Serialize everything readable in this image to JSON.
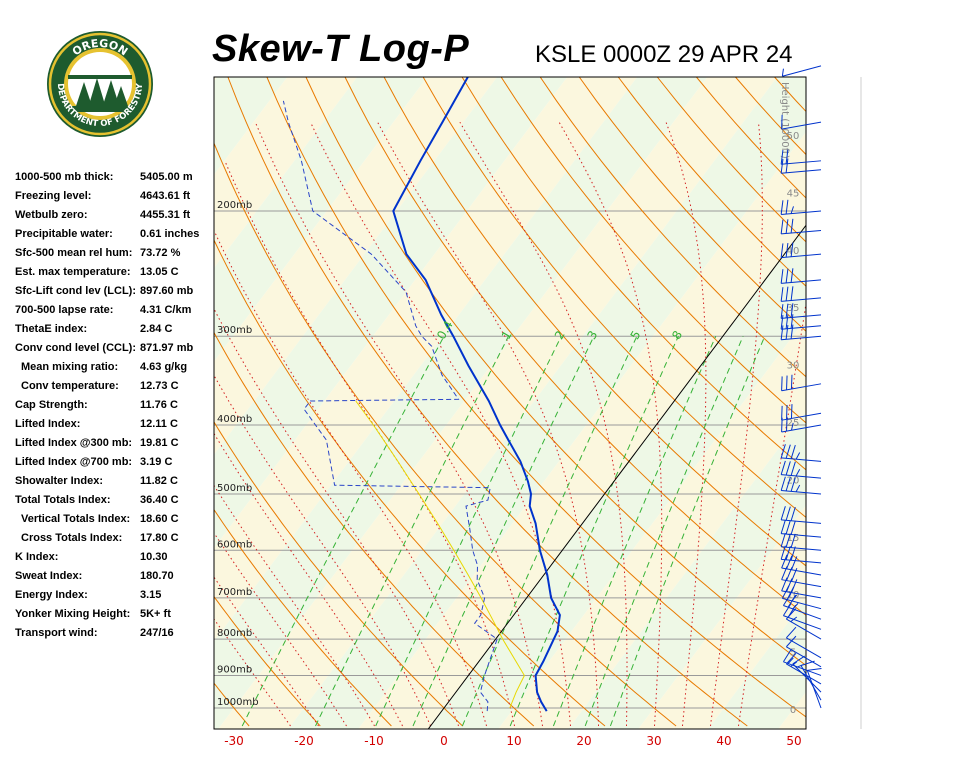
{
  "header": {
    "title": "Skew-T Log-P",
    "subtitle": "KSLE 0000Z 29 APR 24",
    "logo_text_top": "OREGON",
    "logo_text_bottom": "DEPARTMENT OF FORESTRY"
  },
  "indices": [
    {
      "label": "1000-500 mb thick:",
      "value": "5405.00 m",
      "indent": false
    },
    {
      "label": "Freezing level:",
      "value": "4643.61 ft",
      "indent": false
    },
    {
      "label": "Wetbulb zero:",
      "value": "4455.31 ft",
      "indent": false
    },
    {
      "label": "Precipitable water:",
      "value": "0.61 inches",
      "indent": false
    },
    {
      "label": "Sfc-500 mean rel hum:",
      "value": "73.72 %",
      "indent": false
    },
    {
      "label": "Est. max temperature:",
      "value": "13.05 C",
      "indent": false
    },
    {
      "label": "Sfc-Lift cond lev (LCL):",
      "value": "897.60 mb",
      "indent": false
    },
    {
      "label": "700-500 lapse rate:",
      "value": "4.31 C/km",
      "indent": false
    },
    {
      "label": "ThetaE index:",
      "value": "2.84 C",
      "indent": false
    },
    {
      "label": "Conv cond level (CCL):",
      "value": "871.97 mb",
      "indent": false
    },
    {
      "label": "Mean mixing ratio:",
      "value": "4.63 g/kg",
      "indent": true
    },
    {
      "label": "Conv temperature:",
      "value": "12.73 C",
      "indent": true
    },
    {
      "label": "Cap Strength:",
      "value": "11.76 C",
      "indent": false
    },
    {
      "label": "Lifted Index:",
      "value": "12.11 C",
      "indent": false
    },
    {
      "label": "Lifted Index @300 mb:",
      "value": "19.81 C",
      "indent": false
    },
    {
      "label": "Lifted Index @700 mb:",
      "value": "3.19 C",
      "indent": false
    },
    {
      "label": "Showalter Index:",
      "value": "11.82 C",
      "indent": false
    },
    {
      "label": "Total Totals Index:",
      "value": "36.40 C",
      "indent": false
    },
    {
      "label": "Vertical Totals Index:",
      "value": "18.60 C",
      "indent": true
    },
    {
      "label": "Cross Totals Index:",
      "value": "17.80 C",
      "indent": true
    },
    {
      "label": "K Index:",
      "value": "10.30",
      "indent": false
    },
    {
      "label": "Sweat Index:",
      "value": "180.70",
      "indent": false
    },
    {
      "label": "Energy Index:",
      "value": "3.15",
      "indent": false
    },
    {
      "label": "Yonker Mixing Height:",
      "value": "5K+ ft",
      "indent": false
    },
    {
      "label": "Transport wind:",
      "value": "247/16",
      "indent": false
    }
  ],
  "chart_data": {
    "type": "line",
    "title": "Skew-T Log-P",
    "subtitle": "KSLE 0000Z 29 APR 24",
    "xlabel": "",
    "ylabel": "",
    "xlim": [
      -33,
      51
    ],
    "ylim_mb": [
      1050,
      115
    ],
    "y_log": true,
    "skewed_temperature_axis": true,
    "x_ticks": [
      "-30",
      "-20",
      "-10",
      "0",
      "10",
      "20",
      "30",
      "40",
      "50"
    ],
    "pressure_labels": [
      "200mb",
      "300mb",
      "400mb",
      "500mb",
      "600mb",
      "700mb",
      "800mb",
      "900mb",
      "1000mb"
    ],
    "height_axis_title": "Height (1000ft)",
    "height_ticks": [
      "0",
      "5",
      "10",
      "15",
      "20",
      "25",
      "30",
      "35",
      "40",
      "45",
      "50"
    ],
    "mixing_ratio_labels": [
      "0.4",
      "1",
      "2",
      "3",
      "5",
      "8"
    ],
    "colors": {
      "temperature": "#0033cc",
      "dewpoint": "#2a45c8",
      "parcel": "#e8d800",
      "dry_adiabat": "#e87a00",
      "moist_adiabat": "#d32020",
      "mixing_ratio": "#36b236",
      "isobar": "#9a9a9a",
      "zero_isotherm": "#000000",
      "band_light": "#eef8e6",
      "band_dark": "#fbf7de",
      "axis_label": "#d20000"
    },
    "series": [
      {
        "points": [
          {
            "p": 1010,
            "t": 15.0
          },
          {
            "p": 980,
            "t": 13.2
          },
          {
            "p": 950,
            "t": 11.6
          },
          {
            "p": 900,
            "t": 9.6
          },
          {
            "p": 860,
            "t": 9.2
          },
          {
            "p": 800,
            "t": 8.3
          },
          {
            "p": 780,
            "t": 8.0
          },
          {
            "p": 740,
            "t": 6.6
          },
          {
            "p": 700,
            "t": 3.5
          },
          {
            "p": 650,
            "t": 0.5
          },
          {
            "p": 600,
            "t": -3.2
          },
          {
            "p": 550,
            "t": -6.7
          },
          {
            "p": 520,
            "t": -9.4
          },
          {
            "p": 500,
            "t": -10.5
          },
          {
            "p": 480,
            "t": -12.3
          },
          {
            "p": 450,
            "t": -15.5
          },
          {
            "p": 420,
            "t": -19.5
          },
          {
            "p": 400,
            "t": -22.3
          },
          {
            "p": 370,
            "t": -26.5
          },
          {
            "p": 330,
            "t": -33.2
          },
          {
            "p": 300,
            "t": -38.5
          },
          {
            "p": 280,
            "t": -42.5
          },
          {
            "p": 250,
            "t": -48.5
          },
          {
            "p": 230,
            "t": -54.0
          },
          {
            "p": 200,
            "t": -60.5
          },
          {
            "p": 170,
            "t": -62.0
          },
          {
            "p": 150,
            "t": -63.0
          },
          {
            "p": 125,
            "t": -64.5
          }
        ]
      },
      {
        "points": [
          {
            "p": 1010,
            "t": 6.5
          },
          {
            "p": 980,
            "t": 5.6
          },
          {
            "p": 950,
            "t": 3.5
          },
          {
            "p": 900,
            "t": 2.3
          },
          {
            "p": 860,
            "t": 1.5
          },
          {
            "p": 800,
            "t": 0.2
          },
          {
            "p": 760,
            "t": -4.7
          },
          {
            "p": 740,
            "t": -4.7
          },
          {
            "p": 700,
            "t": -6.0
          },
          {
            "p": 660,
            "t": -9.0
          },
          {
            "p": 630,
            "t": -10.5
          },
          {
            "p": 600,
            "t": -12.8
          },
          {
            "p": 560,
            "t": -15.5
          },
          {
            "p": 520,
            "t": -18.5
          },
          {
            "p": 510,
            "t": -16.0
          },
          {
            "p": 490,
            "t": -17.0
          },
          {
            "p": 486,
            "t": -39.5
          },
          {
            "p": 420,
            "t": -45.5
          },
          {
            "p": 380,
            "t": -52.0
          },
          {
            "p": 370,
            "t": -52.0
          },
          {
            "p": 368,
            "t": -31.0
          },
          {
            "p": 340,
            "t": -36.0
          },
          {
            "p": 310,
            "t": -40.5
          },
          {
            "p": 300,
            "t": -43.0
          },
          {
            "p": 290,
            "t": -45.0
          },
          {
            "p": 260,
            "t": -50.0
          },
          {
            "p": 230,
            "t": -59.0
          },
          {
            "p": 200,
            "t": -72.0
          },
          {
            "p": 170,
            "t": -79.0
          },
          {
            "p": 150,
            "t": -85.0
          },
          {
            "p": 140,
            "t": -88.0
          }
        ]
      },
      {
        "points": [
          {
            "p": 1000,
            "t": 9.4
          },
          {
            "p": 950,
            "t": 8.6
          },
          {
            "p": 900,
            "t": 8.0
          },
          {
            "p": 850,
            "t": 4.6
          },
          {
            "p": 800,
            "t": 1.0
          },
          {
            "p": 750,
            "t": -2.6
          },
          {
            "p": 700,
            "t": -6.5
          },
          {
            "p": 650,
            "t": -10.8
          },
          {
            "p": 600,
            "t": -15.5
          },
          {
            "p": 550,
            "t": -20.7
          },
          {
            "p": 500,
            "t": -26.5
          },
          {
            "p": 450,
            "t": -33.0
          },
          {
            "p": 400,
            "t": -40.4
          },
          {
            "p": 370,
            "t": -45.5
          }
        ]
      }
    ],
    "wind_barbs": [
      {
        "p": 1000,
        "dir": 340,
        "speed_kt": 10
      },
      {
        "p": 975,
        "dir": 330,
        "speed_kt": 10
      },
      {
        "p": 950,
        "dir": 315,
        "speed_kt": 15
      },
      {
        "p": 925,
        "dir": 300,
        "speed_kt": 15
      },
      {
        "p": 900,
        "dir": 290,
        "speed_kt": 15
      },
      {
        "p": 875,
        "dir": 300,
        "speed_kt": 10
      },
      {
        "p": 850,
        "dir": 300,
        "speed_kt": 10
      },
      {
        "p": 800,
        "dir": 300,
        "speed_kt": 15
      },
      {
        "p": 775,
        "dir": 290,
        "speed_kt": 20
      },
      {
        "p": 750,
        "dir": 290,
        "speed_kt": 25
      },
      {
        "p": 725,
        "dir": 285,
        "speed_kt": 25
      },
      {
        "p": 700,
        "dir": 280,
        "speed_kt": 30
      },
      {
        "p": 675,
        "dir": 280,
        "speed_kt": 30
      },
      {
        "p": 650,
        "dir": 280,
        "speed_kt": 30
      },
      {
        "p": 625,
        "dir": 275,
        "speed_kt": 30
      },
      {
        "p": 600,
        "dir": 275,
        "speed_kt": 30
      },
      {
        "p": 575,
        "dir": 275,
        "speed_kt": 30
      },
      {
        "p": 550,
        "dir": 275,
        "speed_kt": 30
      },
      {
        "p": 500,
        "dir": 275,
        "speed_kt": 35
      },
      {
        "p": 475,
        "dir": 275,
        "speed_kt": 35
      },
      {
        "p": 450,
        "dir": 275,
        "speed_kt": 35
      },
      {
        "p": 400,
        "dir": 260,
        "speed_kt": 25
      },
      {
        "p": 385,
        "dir": 260,
        "speed_kt": 30
      },
      {
        "p": 350,
        "dir": 260,
        "speed_kt": 30
      },
      {
        "p": 300,
        "dir": 265,
        "speed_kt": 30
      },
      {
        "p": 290,
        "dir": 265,
        "speed_kt": 30
      },
      {
        "p": 280,
        "dir": 265,
        "speed_kt": 30
      },
      {
        "p": 265,
        "dir": 265,
        "speed_kt": 30
      },
      {
        "p": 250,
        "dir": 265,
        "speed_kt": 30
      },
      {
        "p": 230,
        "dir": 265,
        "speed_kt": 30
      },
      {
        "p": 213,
        "dir": 265,
        "speed_kt": 30
      },
      {
        "p": 200,
        "dir": 265,
        "speed_kt": 25
      },
      {
        "p": 175,
        "dir": 265,
        "speed_kt": 20
      },
      {
        "p": 170,
        "dir": 265,
        "speed_kt": 20
      },
      {
        "p": 150,
        "dir": 260,
        "speed_kt": 10
      },
      {
        "p": 125,
        "dir": 255,
        "speed_kt": 5
      }
    ]
  }
}
